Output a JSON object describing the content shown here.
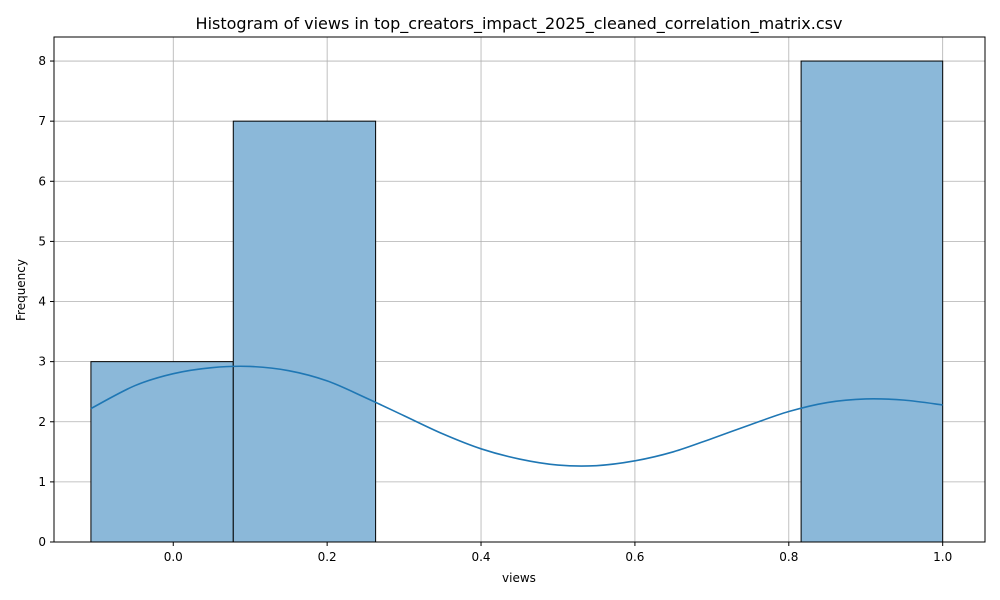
{
  "chart_data": {
    "type": "bar",
    "title": "Histogram of views in top_creators_impact_2025_cleaned_correlation_matrix.csv",
    "xlabel": "views",
    "ylabel": "Frequency",
    "xlim": [
      -0.155,
      1.055
    ],
    "ylim": [
      0,
      8.4
    ],
    "xticks": [
      0.0,
      0.2,
      0.4,
      0.6,
      0.8,
      1.0
    ],
    "xtick_labels": [
      "0.0",
      "0.2",
      "0.4",
      "0.6",
      "0.8",
      "1.0"
    ],
    "yticks": [
      0,
      1,
      2,
      3,
      4,
      5,
      6,
      7,
      8
    ],
    "ytick_labels": [
      "0",
      "1",
      "2",
      "3",
      "4",
      "5",
      "6",
      "7",
      "8"
    ],
    "grid": true,
    "bins": [
      {
        "x0": -0.107,
        "x1": 0.078,
        "count": 3
      },
      {
        "x0": 0.078,
        "x1": 0.263,
        "count": 7
      },
      {
        "x0": 0.263,
        "x1": 0.447,
        "count": 0
      },
      {
        "x0": 0.447,
        "x1": 0.632,
        "count": 0
      },
      {
        "x0": 0.632,
        "x1": 0.816,
        "count": 0
      },
      {
        "x0": 0.816,
        "x1": 1.0,
        "count": 8
      }
    ],
    "kde": {
      "x": [
        -0.107,
        -0.05,
        0.0,
        0.05,
        0.1,
        0.15,
        0.2,
        0.25,
        0.3,
        0.35,
        0.4,
        0.45,
        0.5,
        0.55,
        0.6,
        0.65,
        0.7,
        0.75,
        0.8,
        0.85,
        0.9,
        0.95,
        1.0
      ],
      "y": [
        2.22,
        2.6,
        2.8,
        2.9,
        2.92,
        2.85,
        2.68,
        2.4,
        2.1,
        1.8,
        1.55,
        1.38,
        1.28,
        1.27,
        1.35,
        1.5,
        1.72,
        1.95,
        2.17,
        2.32,
        2.38,
        2.36,
        2.28
      ]
    },
    "colors": {
      "bar_fill": "#8bb8d9",
      "bar_edge": "#000000",
      "kde_line": "#1f77b4",
      "grid": "#b0b0b0"
    }
  }
}
